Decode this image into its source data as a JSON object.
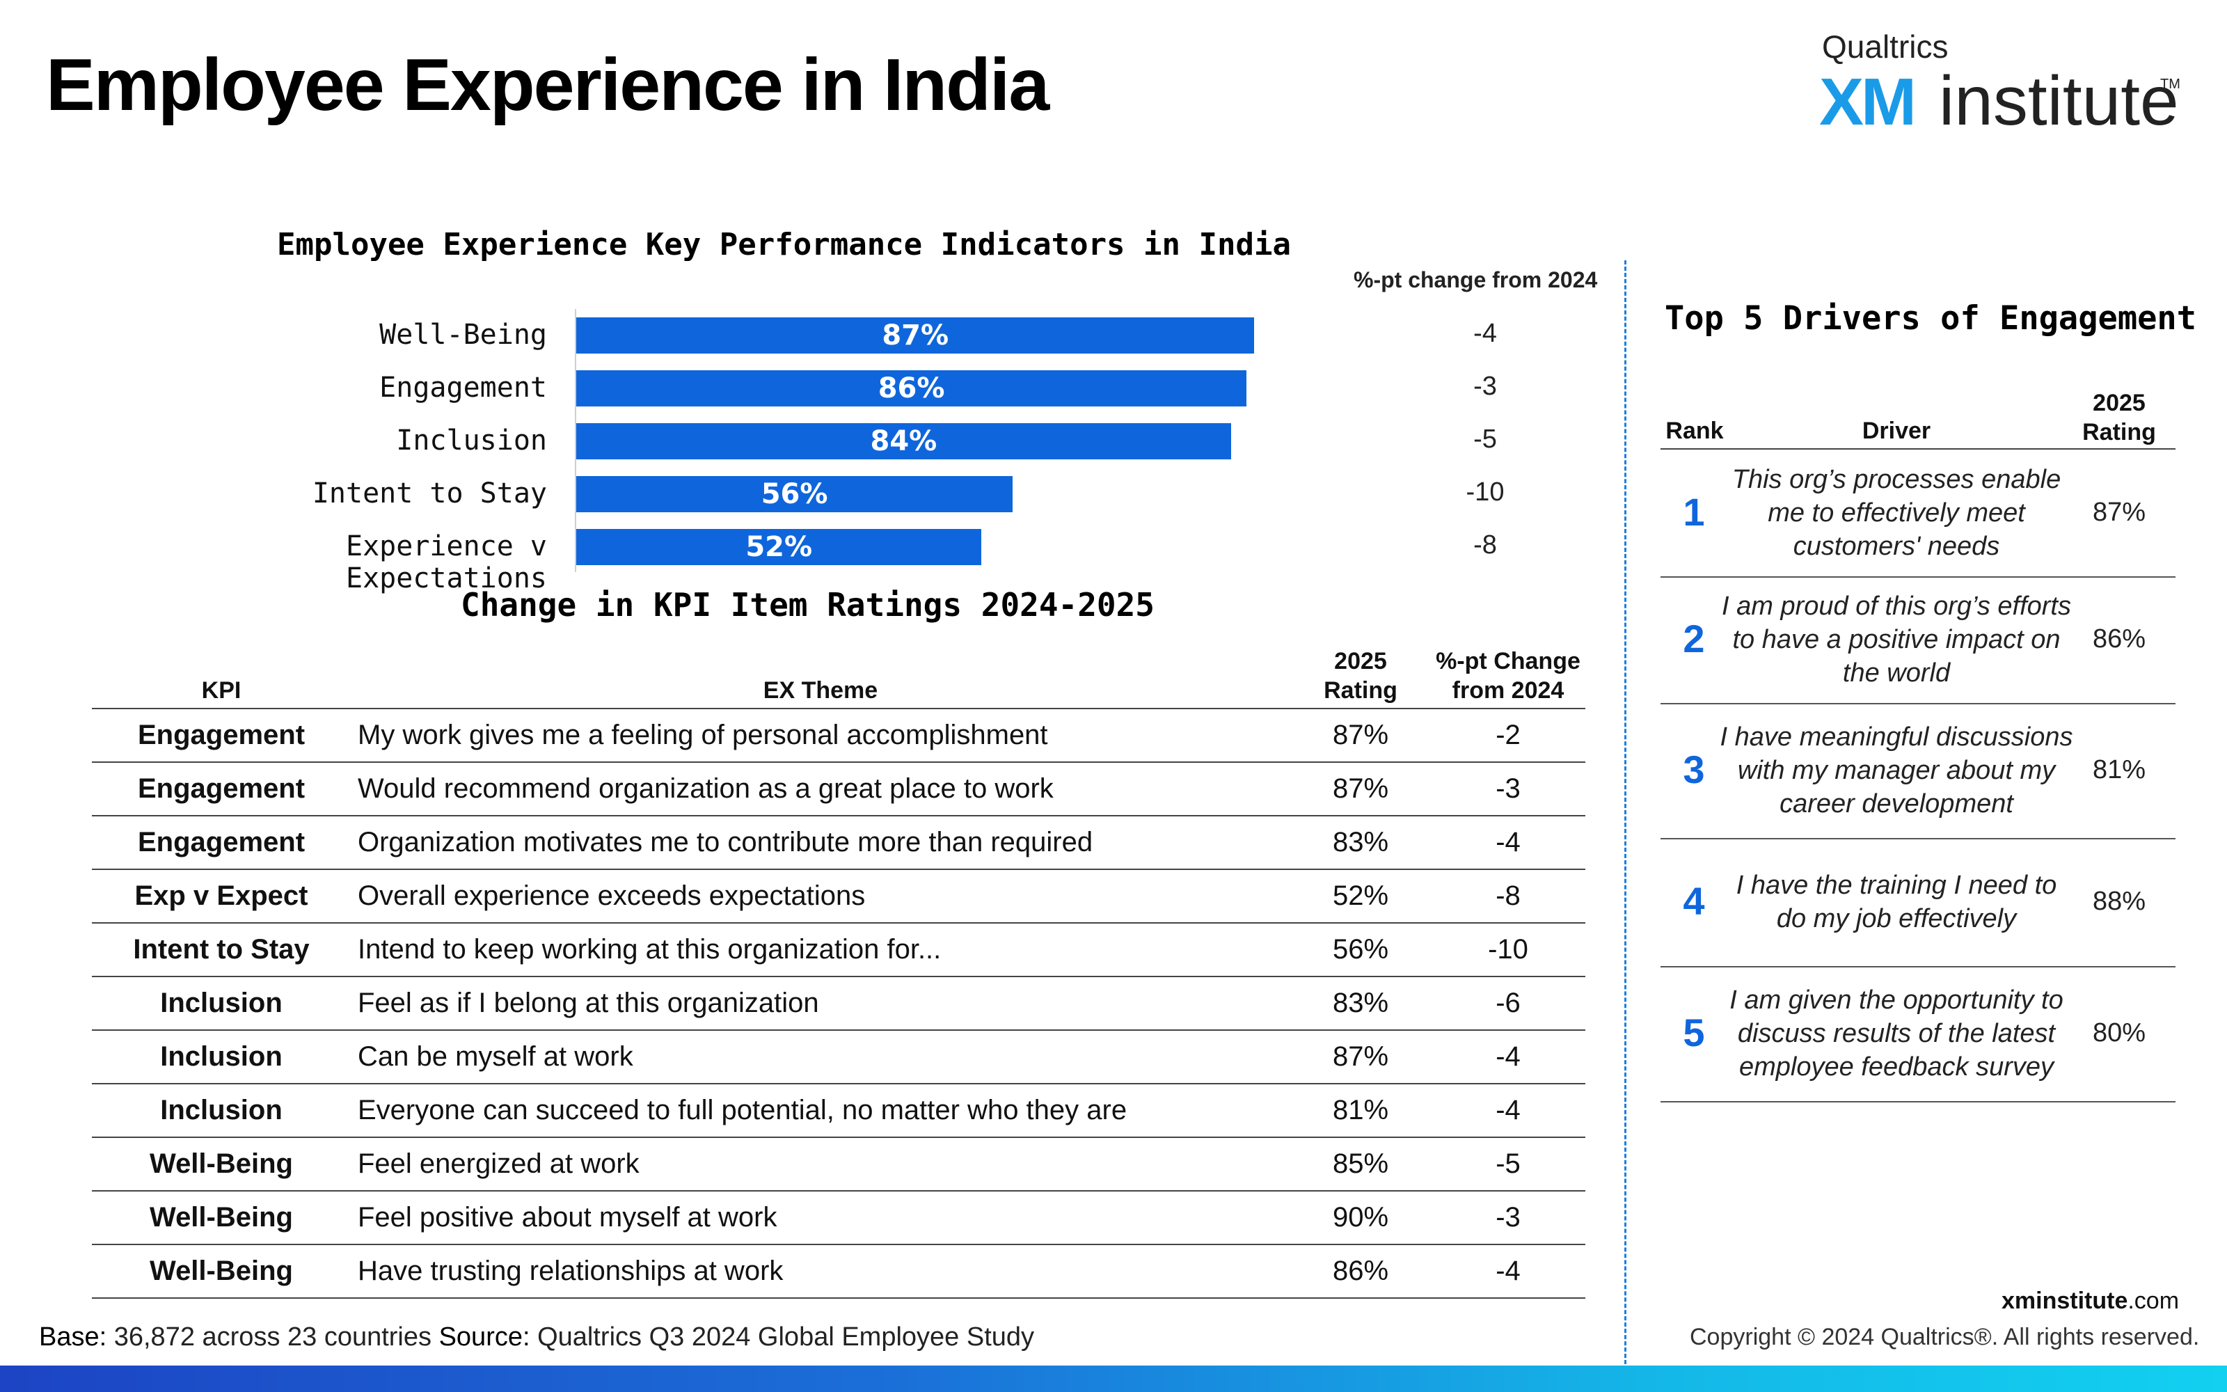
{
  "page_title": "Employee Experience in India",
  "logo": {
    "brand": "Qualtrics",
    "xm": "XM",
    "name": "institute",
    "tm": "TM"
  },
  "colors": {
    "bar": "#0f66dc",
    "accent": "#1a9be8",
    "rank": "#0f66dc"
  },
  "chart_data": {
    "type": "bar",
    "orientation": "horizontal",
    "title": "Employee Experience Key Performance Indicators in India",
    "categories": [
      "Well-Being",
      "Engagement",
      "Inclusion",
      "Intent to Stay",
      "Experience v Expectations"
    ],
    "values": [
      87,
      86,
      84,
      56,
      52
    ],
    "value_labels": [
      "87%",
      "86%",
      "84%",
      "56%",
      "52%"
    ],
    "xlim": [
      0,
      100
    ],
    "change_header": "%-pt change from 2024",
    "changes": [
      "-4",
      "-3",
      "-5",
      "-10",
      "-8"
    ]
  },
  "kpi_table": {
    "title": "Change in KPI Item Ratings 2024-2025",
    "headers": {
      "kpi": "KPI",
      "theme": "EX Theme",
      "rating": "2025 Rating",
      "change": "%-pt Change from 2024"
    },
    "rows": [
      {
        "kpi": "Engagement",
        "theme": "My work gives me a feeling of personal accomplishment",
        "rating": "87%",
        "change": "-2"
      },
      {
        "kpi": "Engagement",
        "theme": "Would recommend organization as a great place to work",
        "rating": "87%",
        "change": "-3"
      },
      {
        "kpi": "Engagement",
        "theme": "Organization motivates me to contribute more than required",
        "rating": "83%",
        "change": "-4"
      },
      {
        "kpi": "Exp v Expect",
        "theme": "Overall experience exceeds expectations",
        "rating": "52%",
        "change": "-8"
      },
      {
        "kpi": "Intent to Stay",
        "theme": "Intend to keep working at this organization for...",
        "rating": "56%",
        "change": "-10"
      },
      {
        "kpi": "Inclusion",
        "theme": "Feel as if I belong at this organization",
        "rating": "83%",
        "change": "-6"
      },
      {
        "kpi": "Inclusion",
        "theme": "Can be myself at work",
        "rating": "87%",
        "change": "-4"
      },
      {
        "kpi": "Inclusion",
        "theme": "Everyone can succeed to full potential, no matter who they are",
        "rating": "81%",
        "change": "-4"
      },
      {
        "kpi": "Well-Being",
        "theme": "Feel energized at work",
        "rating": "85%",
        "change": "-5"
      },
      {
        "kpi": "Well-Being",
        "theme": "Feel positive about myself at work",
        "rating": "90%",
        "change": "-3"
      },
      {
        "kpi": "Well-Being",
        "theme": "Have trusting relationships at work",
        "rating": "86%",
        "change": "-4"
      }
    ]
  },
  "drivers": {
    "title": "Top 5 Drivers of Engagement",
    "headers": {
      "rank": "Rank",
      "driver": "Driver",
      "rating": "2025 Rating"
    },
    "rows": [
      {
        "rank": "1",
        "text": "This org’s processes enable me to effectively meet customers' needs",
        "rating": "87%"
      },
      {
        "rank": "2",
        "text": "I am proud of this org’s efforts to have a positive impact on the world",
        "rating": "86%"
      },
      {
        "rank": "3",
        "text": "I have meaningful discussions with my manager about my career development",
        "rating": "81%"
      },
      {
        "rank": "4",
        "text": "I have the training I need to do my job effectively",
        "rating": "88%"
      },
      {
        "rank": "5",
        "text": "I am given the opportunity to discuss results of the latest employee feedback survey",
        "rating": "80%"
      }
    ]
  },
  "footer": {
    "base_label": "Base:",
    "base_text": "36,872 across 23 countries",
    "source_label": "Source:",
    "source_text": "Qualtrics Q3 2024 Global Employee Study",
    "site_bold": "xminstitute",
    "site_rest": ".com",
    "copyright": "Copyright © 2024 Qualtrics®. All rights reserved."
  }
}
